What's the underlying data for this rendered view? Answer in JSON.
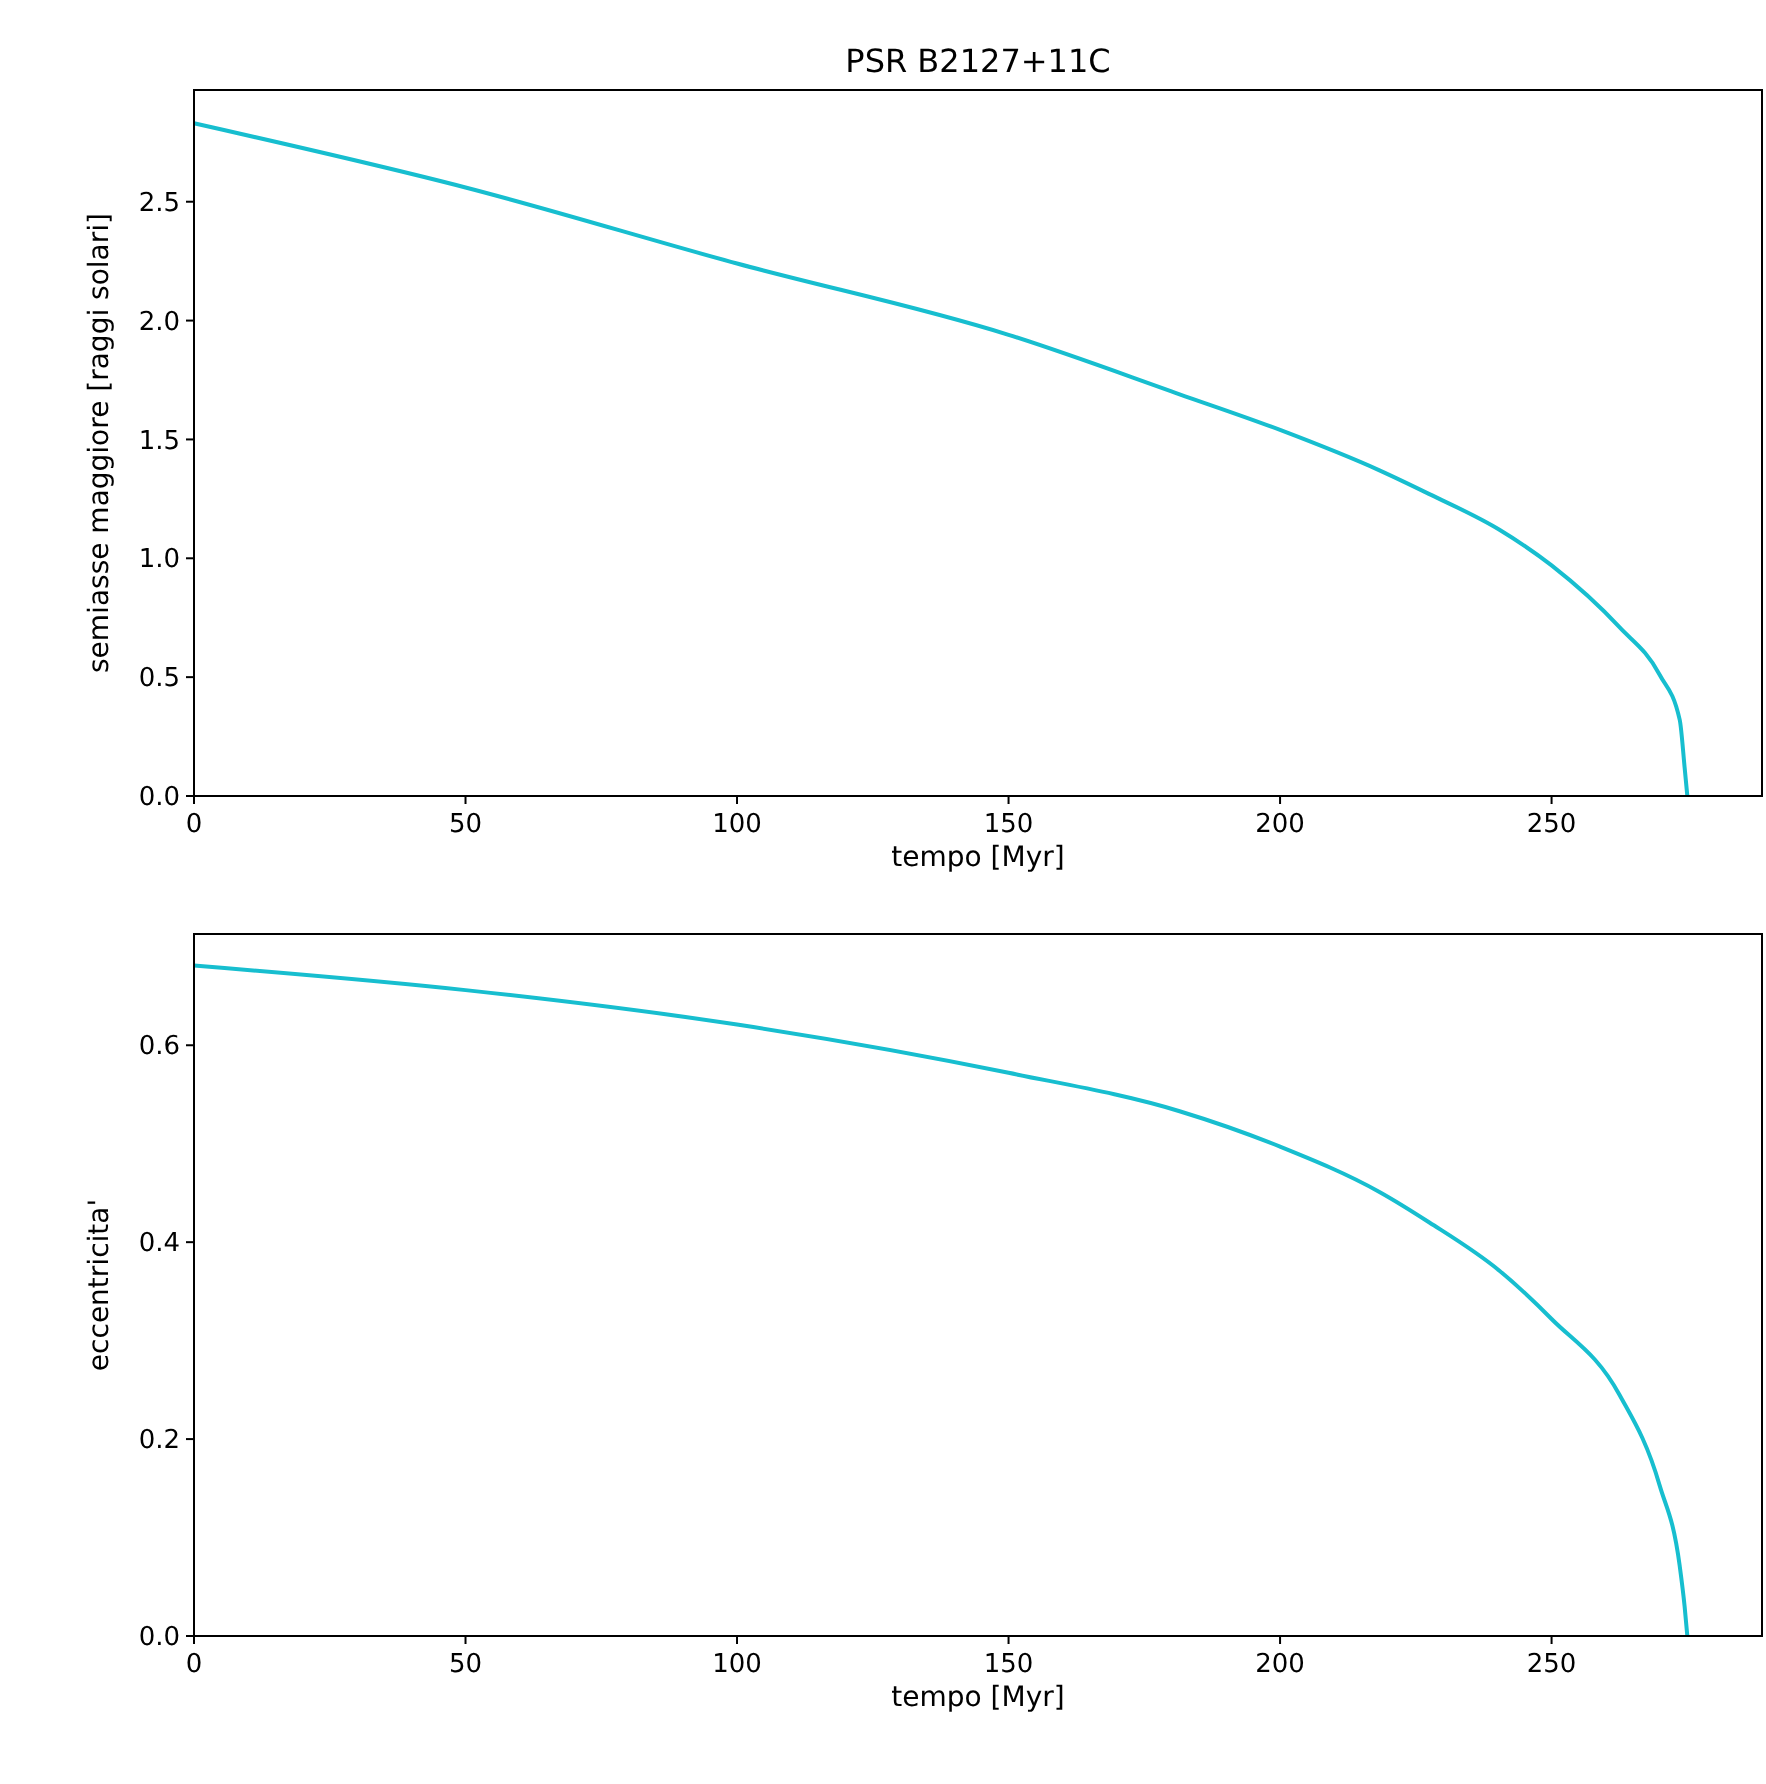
{
  "chart_data": [
    {
      "type": "line",
      "title": "PSR B2127+11C",
      "xlabel": "tempo [Myr]",
      "ylabel": "semiasse maggiore [raggi solari]",
      "x": [
        0,
        50,
        100,
        150,
        181.5,
        200,
        218.3,
        227.5,
        240.4,
        250,
        262.5,
        269.9,
        273.6,
        274.5,
        275
      ],
      "series": [
        {
          "color": "#17becf",
          "values": [
            2.83,
            2.56,
            2.24,
            1.94,
            1.69,
            1.54,
            1.37,
            1.27,
            1.12,
            0.97,
            0.71,
            0.51,
            0.32,
            0.12,
            0
          ]
        }
      ],
      "xlim": [
        0,
        288.75
      ],
      "ylim": [
        0,
        2.97
      ],
      "xticks": [
        0,
        50,
        100,
        150,
        200,
        250
      ],
      "yticks": [
        {
          "value": 0,
          "label": "0.0"
        },
        {
          "value": 0.5,
          "label": "0.5"
        },
        {
          "value": 1,
          "label": "1.0"
        },
        {
          "value": 1.5,
          "label": "1.5"
        },
        {
          "value": 2,
          "label": "2.0"
        },
        {
          "value": 2.5,
          "label": "2.5"
        }
      ],
      "grid": false
    },
    {
      "type": "line",
      "xlabel": "tempo [Myr]",
      "ylabel": "eccentricita'",
      "x": [
        0,
        50,
        100,
        150,
        181.5,
        200,
        218.3,
        227.5,
        240.4,
        250,
        262.5,
        269.9,
        273.6,
        274.5,
        275
      ],
      "series": [
        {
          "color": "#17becf",
          "values": [
            0.681,
            0.656,
            0.621,
            0.572,
            0.533,
            0.497,
            0.451,
            0.42,
            0.371,
            0.322,
            0.245,
            0.153,
            0.071,
            0.03,
            0
          ]
        }
      ],
      "xlim": [
        0,
        288.75
      ],
      "ylim": [
        0,
        0.713
      ],
      "xticks": [
        0,
        50,
        100,
        150,
        200,
        250
      ],
      "yticks": [
        {
          "value": 0,
          "label": "0.0"
        },
        {
          "value": 0.2,
          "label": "0.2"
        },
        {
          "value": 0.4,
          "label": "0.4"
        },
        {
          "value": 0.6,
          "label": "0.6"
        }
      ],
      "grid": false
    }
  ]
}
